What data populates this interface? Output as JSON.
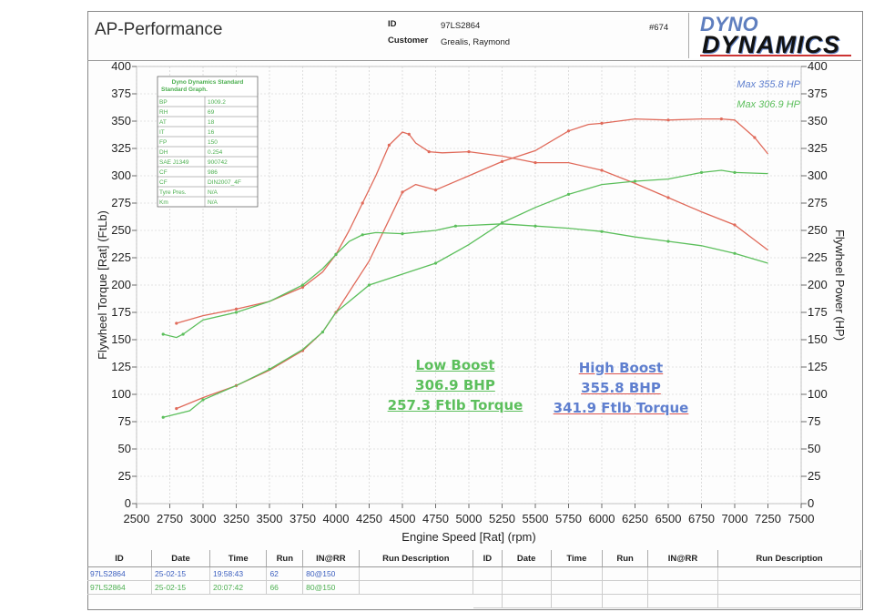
{
  "header": {
    "title": "AP-Performance",
    "id_label": "ID",
    "id_value": "97LS2864",
    "customer_label": "Customer",
    "customer_value": "Grealis, Raymond",
    "sheet_no": "#674",
    "logo_line1": "DYNO",
    "logo_line2": "DYNAMICS"
  },
  "correction_table": {
    "title1": "Dyno Dynamics Standard",
    "title2": "Standard Graph.",
    "rows": [
      [
        "BP",
        "1009.2"
      ],
      [
        "RH",
        "69"
      ],
      [
        "AT",
        "18"
      ],
      [
        "IT",
        "16"
      ],
      [
        "FP",
        "150"
      ],
      [
        "DH",
        "0.254"
      ],
      [
        "SAE J1349",
        "900742"
      ],
      [
        "CF",
        "986"
      ],
      [
        "CF",
        "DIN2007_4F"
      ],
      [
        "Tyre Pres.",
        "N/A"
      ],
      [
        "Km",
        "N/A"
      ]
    ]
  },
  "annotations": {
    "low": {
      "title": "Low Boost",
      "power": "306.9 BHP",
      "torque": "257.3 Ftlb Torque",
      "color": "#5cbf5c"
    },
    "high": {
      "title": "High Boost",
      "power": "355.8 BHP",
      "torque": "341.9 Ftlb Torque",
      "color": "#5f7fcf",
      "underline": "#d9534f"
    }
  },
  "chart_data": {
    "type": "line",
    "xlabel": "Engine Speed [Rat] (rpm)",
    "ylabel": "Flywheel Torque [Rat] (FtLb)",
    "y2label": "Flywheel Power (HP)",
    "xlim": [
      2500,
      7500
    ],
    "ylim": [
      0,
      400
    ],
    "y2lim": [
      0,
      400
    ],
    "xticks": [
      "2500",
      "2750",
      "3000",
      "3250",
      "3500",
      "3750",
      "4000",
      "4250",
      "4500",
      "4750",
      "5000",
      "5250",
      "5500",
      "5750",
      "6000",
      "6250",
      "6500",
      "6750",
      "7000",
      "7250",
      "7500"
    ],
    "yticks": [
      "0",
      "25",
      "50",
      "75",
      "100",
      "125",
      "150",
      "175",
      "200",
      "225",
      "250",
      "275",
      "300",
      "325",
      "350",
      "375",
      "400"
    ],
    "y2ticks": [
      "0",
      "25",
      "50",
      "75",
      "100",
      "125",
      "150",
      "175",
      "200",
      "225",
      "250",
      "275",
      "300",
      "325",
      "350",
      "375",
      "400"
    ],
    "max_labels": [
      {
        "text": "Max 355.8 HP",
        "color": "#5f7fcf"
      },
      {
        "text": "Max 306.9 HP",
        "color": "#5cbf5c"
      }
    ],
    "series": [
      {
        "name": "High Boost Torque",
        "axis": "left",
        "color": "#e06a5a",
        "x": [
          2800,
          3000,
          3250,
          3500,
          3750,
          3900,
          4000,
          4100,
          4200,
          4300,
          4400,
          4500,
          4550,
          4600,
          4700,
          4800,
          5000,
          5250,
          5500,
          5750,
          6000,
          6250,
          6500,
          6750,
          7000,
          7250
        ],
        "y": [
          165,
          172,
          178,
          185,
          198,
          212,
          228,
          250,
          275,
          300,
          328,
          340,
          338,
          330,
          322,
          321,
          322,
          318,
          312,
          312,
          305,
          293,
          280,
          267,
          255,
          232
        ]
      },
      {
        "name": "High Boost Power",
        "axis": "right",
        "color": "#e06a5a",
        "x": [
          2800,
          3000,
          3250,
          3500,
          3750,
          3900,
          4000,
          4250,
          4500,
          4600,
          4750,
          5000,
          5250,
          5500,
          5750,
          5900,
          6000,
          6250,
          6500,
          6750,
          6900,
          7000,
          7150,
          7250
        ],
        "y": [
          87,
          97,
          108,
          122,
          140,
          157,
          175,
          222,
          285,
          292,
          287,
          300,
          313,
          323,
          341,
          347,
          348,
          352,
          351,
          352,
          352,
          351,
          335,
          320
        ]
      },
      {
        "name": "Low Boost Torque",
        "axis": "left",
        "color": "#5cbf5c",
        "x": [
          2700,
          2800,
          2850,
          3000,
          3250,
          3500,
          3750,
          3900,
          4000,
          4100,
          4200,
          4300,
          4500,
          4750,
          4900,
          5250,
          5500,
          5750,
          6000,
          6250,
          6500,
          6750,
          7000,
          7250
        ],
        "y": [
          155,
          152,
          155,
          168,
          175,
          185,
          200,
          215,
          228,
          240,
          246,
          248,
          247,
          250,
          254,
          256,
          254,
          252,
          249,
          244,
          240,
          236,
          229,
          220
        ]
      },
      {
        "name": "Low Boost Power",
        "axis": "right",
        "color": "#5cbf5c",
        "x": [
          2700,
          2900,
          3000,
          3250,
          3500,
          3750,
          3900,
          4000,
          4250,
          4500,
          4750,
          5000,
          5250,
          5500,
          5750,
          6000,
          6250,
          6500,
          6750,
          6900,
          7000,
          7250
        ],
        "y": [
          79,
          85,
          95,
          108,
          123,
          141,
          157,
          175,
          200,
          210,
          220,
          237,
          257,
          271,
          283,
          292,
          295,
          297,
          303,
          305,
          303,
          302
        ]
      }
    ]
  },
  "runs_table": {
    "headers_left": [
      "ID",
      "Date",
      "Time",
      "Run",
      "IN@RR",
      "Run Description"
    ],
    "headers_right": [
      "ID",
      "Date",
      "Time",
      "Run",
      "IN@RR",
      "Run Description"
    ],
    "rows": [
      {
        "id": "97LS2864",
        "date": "25-02-15",
        "time": "19:58:43",
        "run": "62",
        "inrr": "80@150",
        "desc": "",
        "color": "#3c5fbf"
      },
      {
        "id": "97LS2864",
        "date": "25-02-15",
        "time": "20:07:42",
        "run": "66",
        "inrr": "80@150",
        "desc": "",
        "color": "#4caf50"
      }
    ]
  }
}
